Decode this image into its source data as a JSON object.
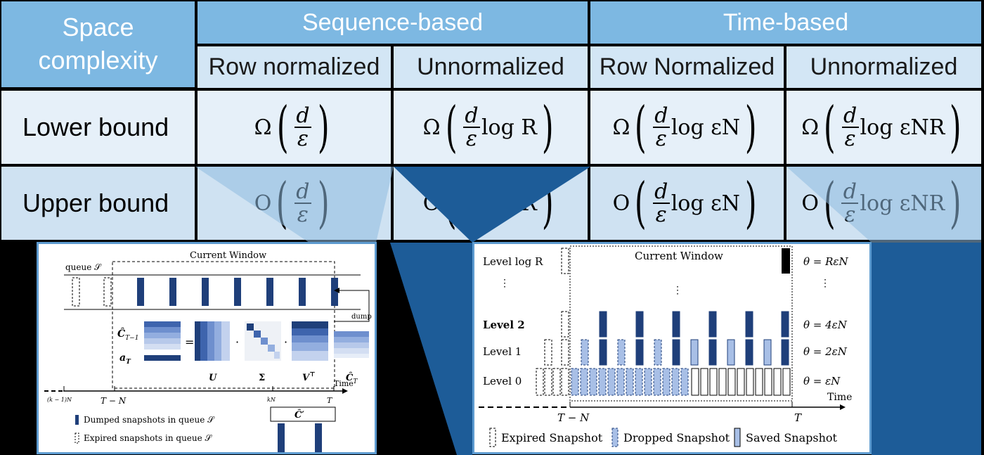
{
  "table": {
    "corner": "Space complexity",
    "groups": [
      "Sequence-based",
      "Time-based"
    ],
    "subheaders": [
      "Row normalized",
      "Unnormalized",
      "Row Normalized",
      "Unnormalized"
    ],
    "rows": [
      {
        "label": "Lower bound",
        "op": "Ω",
        "cells": [
          "",
          "log R",
          "log εN",
          "log εNR"
        ]
      },
      {
        "label": "Upper bound",
        "op": "O",
        "cells": [
          "",
          "log R",
          "log εN",
          "log εNR"
        ]
      }
    ],
    "frac_num": "d",
    "frac_den": "ε"
  },
  "left_panel": {
    "window_label": "Current Window",
    "queue_label": "queue 𝒮",
    "dump_label": "dump",
    "c_prev_label": "Ĉ",
    "c_prev_sub": "T−1",
    "a_label": "a",
    "a_sub": "T",
    "equals": "=",
    "dot": "·",
    "u_label": "U",
    "sigma_label": "Σ",
    "v_label": "V",
    "v_sup": "⊤",
    "c_new_label": "Ĉ",
    "c_new_sub": "T",
    "time_label": "Time",
    "ticks": [
      "(k − 1)N",
      "T − N",
      "kN",
      "T"
    ],
    "cprime_label": "Ĉ′",
    "legend": [
      "Dumped snapshots in queue 𝒮",
      "Expired snapshots in queue 𝒮"
    ]
  },
  "right_panel": {
    "window_label": "Current Window",
    "levels": [
      "Level log R",
      "Level 2",
      "Level 1",
      "Level 0"
    ],
    "thetas": [
      "θ = RεN",
      "θ = 4εN",
      "θ = 2εN",
      "θ = εN"
    ],
    "time_label": "Time",
    "ticks": [
      "T − N",
      "T"
    ],
    "legend": [
      "Expired Snapshot",
      "Dropped Snapshot",
      "Saved Snapshot"
    ]
  },
  "colors": {
    "header_dark": "#7db8e2",
    "header_light": "#d3e6f5",
    "row_light": "#e6f0f9",
    "row_mid": "#cfe2f2",
    "panel_border": "#5d9bd0",
    "snapshot_dark": "#1f3f7a",
    "snapshot_light": "#a8bfe6",
    "wedge": "#1d5c98"
  }
}
